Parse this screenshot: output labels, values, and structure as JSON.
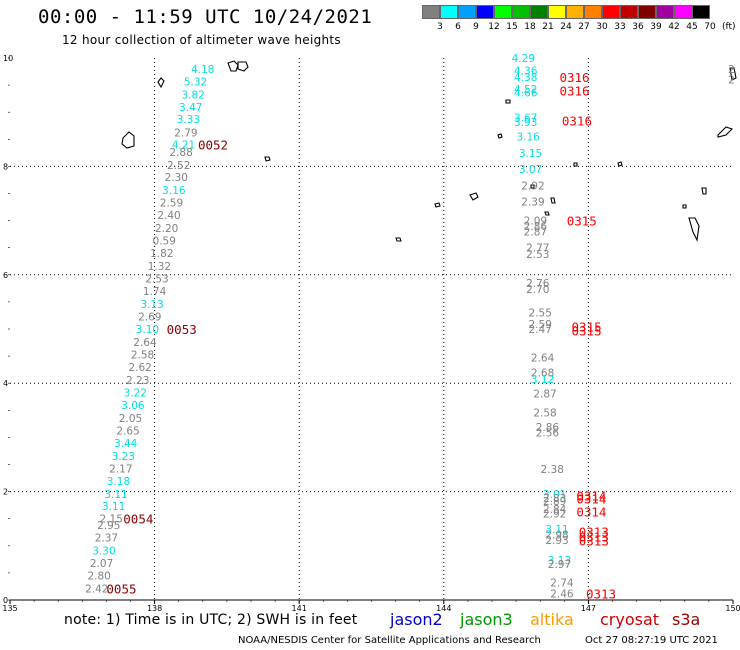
{
  "header": {
    "title": "00:00 - 11:59 UTC 10/24/2021",
    "subtitle": "12 hour collection of altimeter wave heights"
  },
  "colorbar": {
    "labels": [
      "3",
      "6",
      "9",
      "12",
      "15",
      "18",
      "21",
      "24",
      "27",
      "30",
      "33",
      "36",
      "39",
      "42",
      "45",
      "70"
    ],
    "unit": "(ft)",
    "colors": [
      "#808080",
      "#00ffff",
      "#00a0ff",
      "#0000ff",
      "#00ff00",
      "#00c000",
      "#008000",
      "#ffff00",
      "#ffb000",
      "#ff8000",
      "#ff0000",
      "#c00000",
      "#800000",
      "#a000a0",
      "#ff00ff",
      "#000000"
    ]
  },
  "axes": {
    "x_ticks": [
      "135",
      "138",
      "141",
      "144",
      "147",
      "150"
    ],
    "y_ticks": [
      "0",
      "2",
      "4",
      "6",
      "8",
      "10"
    ]
  },
  "chart_data": {
    "type": "scatter",
    "x_unit": "degrees longitude",
    "y_unit": "degrees latitude",
    "xlim": [
      135,
      150
    ],
    "ylim": [
      0,
      10
    ],
    "grid": true,
    "points": [
      {
        "lon": 139.0,
        "lat": 9.8,
        "t": "4.18",
        "c": "#00e0e0"
      },
      {
        "lon": 138.85,
        "lat": 9.57,
        "t": "5.32",
        "c": "#00e0e0"
      },
      {
        "lon": 138.8,
        "lat": 9.33,
        "t": "3.82",
        "c": "#00e0e0"
      },
      {
        "lon": 138.75,
        "lat": 9.1,
        "t": "3.47",
        "c": "#00e0e0"
      },
      {
        "lon": 138.7,
        "lat": 8.87,
        "t": "3.33",
        "c": "#00e0e0"
      },
      {
        "lon": 138.65,
        "lat": 8.63,
        "t": "2.79",
        "c": "#808080"
      },
      {
        "lon": 138.6,
        "lat": 8.4,
        "t": "4.21",
        "c": "#00e0e0"
      },
      {
        "lon": 138.55,
        "lat": 8.27,
        "t": "2.88",
        "c": "#808080"
      },
      {
        "lon": 138.5,
        "lat": 8.03,
        "t": "2.52",
        "c": "#808080"
      },
      {
        "lon": 138.45,
        "lat": 7.8,
        "t": "2.30",
        "c": "#808080"
      },
      {
        "lon": 138.4,
        "lat": 7.56,
        "t": "3.16",
        "c": "#00e0e0"
      },
      {
        "lon": 138.35,
        "lat": 7.33,
        "t": "2.59",
        "c": "#808080"
      },
      {
        "lon": 138.3,
        "lat": 7.1,
        "t": "2.40",
        "c": "#808080"
      },
      {
        "lon": 138.25,
        "lat": 6.86,
        "t": "2.20",
        "c": "#808080"
      },
      {
        "lon": 138.2,
        "lat": 6.63,
        "t": "0.59",
        "c": "#808080"
      },
      {
        "lon": 138.15,
        "lat": 6.4,
        "t": "1.82",
        "c": "#808080"
      },
      {
        "lon": 138.1,
        "lat": 6.16,
        "t": "1.32",
        "c": "#808080"
      },
      {
        "lon": 138.05,
        "lat": 5.93,
        "t": "2.53",
        "c": "#808080"
      },
      {
        "lon": 138.0,
        "lat": 5.7,
        "t": "1.74",
        "c": "#808080"
      },
      {
        "lon": 137.95,
        "lat": 5.46,
        "t": "3.13",
        "c": "#00e0e0"
      },
      {
        "lon": 137.9,
        "lat": 5.23,
        "t": "2.69",
        "c": "#808080"
      },
      {
        "lon": 137.85,
        "lat": 5.0,
        "t": "3.10",
        "c": "#00e0e0"
      },
      {
        "lon": 137.8,
        "lat": 4.76,
        "t": "2.64",
        "c": "#808080"
      },
      {
        "lon": 137.75,
        "lat": 4.53,
        "t": "2.58",
        "c": "#808080"
      },
      {
        "lon": 137.7,
        "lat": 4.3,
        "t": "2.62",
        "c": "#808080"
      },
      {
        "lon": 137.65,
        "lat": 4.06,
        "t": "2.23",
        "c": "#808080"
      },
      {
        "lon": 137.6,
        "lat": 3.83,
        "t": "3.22",
        "c": "#00e0e0"
      },
      {
        "lon": 137.55,
        "lat": 3.6,
        "t": "3.06",
        "c": "#00e0e0"
      },
      {
        "lon": 137.5,
        "lat": 3.36,
        "t": "2.05",
        "c": "#808080"
      },
      {
        "lon": 137.45,
        "lat": 3.13,
        "t": "2.65",
        "c": "#808080"
      },
      {
        "lon": 137.4,
        "lat": 2.9,
        "t": "3.44",
        "c": "#00e0e0"
      },
      {
        "lon": 137.35,
        "lat": 2.66,
        "t": "3.23",
        "c": "#00e0e0"
      },
      {
        "lon": 137.3,
        "lat": 2.43,
        "t": "2.17",
        "c": "#808080"
      },
      {
        "lon": 137.25,
        "lat": 2.2,
        "t": "3.18",
        "c": "#00e0e0"
      },
      {
        "lon": 137.2,
        "lat": 1.96,
        "t": "3.11",
        "c": "#00e0e0"
      },
      {
        "lon": 137.15,
        "lat": 1.73,
        "t": "3.11",
        "c": "#00e0e0"
      },
      {
        "lon": 137.1,
        "lat": 1.5,
        "t": "2.15",
        "c": "#808080"
      },
      {
        "lon": 137.05,
        "lat": 1.38,
        "t": "2.95",
        "c": "#808080"
      },
      {
        "lon": 137.0,
        "lat": 1.15,
        "t": "2.37",
        "c": "#808080"
      },
      {
        "lon": 136.95,
        "lat": 0.91,
        "t": "3.30",
        "c": "#00e0e0"
      },
      {
        "lon": 136.9,
        "lat": 0.68,
        "t": "2.07",
        "c": "#808080"
      },
      {
        "lon": 136.85,
        "lat": 0.45,
        "t": "2.80",
        "c": "#808080"
      },
      {
        "lon": 136.8,
        "lat": 0.21,
        "t": "2.42",
        "c": "#808080"
      },
      {
        "lon": 145.65,
        "lat": 10.0,
        "t": "4.29",
        "c": "#00e0e0"
      },
      {
        "lon": 145.7,
        "lat": 9.77,
        "t": "4.36",
        "c": "#00e0e0"
      },
      {
        "lon": 145.7,
        "lat": 9.65,
        "t": "4.38",
        "c": "#00e0e0"
      },
      {
        "lon": 145.7,
        "lat": 9.43,
        "t": "4.52",
        "c": "#00e0e0"
      },
      {
        "lon": 145.7,
        "lat": 9.36,
        "t": "4.66",
        "c": "#00e0e0"
      },
      {
        "lon": 145.7,
        "lat": 8.9,
        "t": "3.67",
        "c": "#00e0e0"
      },
      {
        "lon": 145.7,
        "lat": 8.82,
        "t": "3.93",
        "c": "#00e0e0"
      },
      {
        "lon": 145.75,
        "lat": 8.55,
        "t": "3.16",
        "c": "#00e0e0"
      },
      {
        "lon": 145.8,
        "lat": 8.25,
        "t": "3.15",
        "c": "#00e0e0"
      },
      {
        "lon": 145.8,
        "lat": 7.95,
        "t": "3.07",
        "c": "#00e0e0"
      },
      {
        "lon": 145.85,
        "lat": 7.65,
        "t": "2.92",
        "c": "#808080"
      },
      {
        "lon": 145.85,
        "lat": 7.35,
        "t": "2.39",
        "c": "#808080"
      },
      {
        "lon": 145.9,
        "lat": 7.0,
        "t": "2.09",
        "c": "#808080"
      },
      {
        "lon": 145.9,
        "lat": 6.9,
        "t": "2.86",
        "c": "#808080"
      },
      {
        "lon": 145.9,
        "lat": 6.8,
        "t": "2.87",
        "c": "#808080"
      },
      {
        "lon": 145.95,
        "lat": 6.5,
        "t": "2.77",
        "c": "#808080"
      },
      {
        "lon": 145.95,
        "lat": 6.38,
        "t": "2.53",
        "c": "#808080"
      },
      {
        "lon": 145.95,
        "lat": 5.85,
        "t": "2.76",
        "c": "#808080"
      },
      {
        "lon": 145.95,
        "lat": 5.74,
        "t": "2.70",
        "c": "#808080"
      },
      {
        "lon": 146.0,
        "lat": 5.3,
        "t": "2.55",
        "c": "#808080"
      },
      {
        "lon": 146.0,
        "lat": 5.09,
        "t": "2.59",
        "c": "#808080"
      },
      {
        "lon": 146.0,
        "lat": 5.0,
        "t": "2.47",
        "c": "#808080"
      },
      {
        "lon": 146.05,
        "lat": 4.47,
        "t": "2.64",
        "c": "#808080"
      },
      {
        "lon": 146.05,
        "lat": 4.2,
        "t": "2.68",
        "c": "#808080"
      },
      {
        "lon": 146.05,
        "lat": 4.08,
        "t": "3.12",
        "c": "#00e0e0"
      },
      {
        "lon": 146.1,
        "lat": 3.81,
        "t": "2.87",
        "c": "#808080"
      },
      {
        "lon": 146.1,
        "lat": 3.46,
        "t": "2.58",
        "c": "#808080"
      },
      {
        "lon": 146.15,
        "lat": 3.19,
        "t": "2.86",
        "c": "#808080"
      },
      {
        "lon": 146.15,
        "lat": 3.09,
        "t": "2.56",
        "c": "#808080"
      },
      {
        "lon": 146.25,
        "lat": 2.42,
        "t": "2.38",
        "c": "#808080"
      },
      {
        "lon": 146.3,
        "lat": 1.96,
        "t": "3.01",
        "c": "#00e0e0"
      },
      {
        "lon": 146.3,
        "lat": 1.88,
        "t": "2.83",
        "c": "#808080"
      },
      {
        "lon": 146.3,
        "lat": 1.83,
        "t": "2.89",
        "c": "#808080"
      },
      {
        "lon": 146.3,
        "lat": 1.68,
        "t": "2.84",
        "c": "#808080"
      },
      {
        "lon": 146.3,
        "lat": 1.6,
        "t": "2.92",
        "c": "#808080"
      },
      {
        "lon": 146.35,
        "lat": 1.31,
        "t": "3.11",
        "c": "#00e0e0"
      },
      {
        "lon": 146.35,
        "lat": 1.21,
        "t": "2.98",
        "c": "#808080"
      },
      {
        "lon": 146.35,
        "lat": 1.11,
        "t": "2.93",
        "c": "#808080"
      },
      {
        "lon": 146.4,
        "lat": 0.74,
        "t": "3.13",
        "c": "#00e0e0"
      },
      {
        "lon": 146.4,
        "lat": 0.66,
        "t": "2.97",
        "c": "#808080"
      },
      {
        "lon": 146.45,
        "lat": 0.32,
        "t": "2.74",
        "c": "#808080"
      },
      {
        "lon": 146.45,
        "lat": 0.12,
        "t": "2.46",
        "c": "#808080"
      }
    ],
    "time_labels": [
      {
        "lon": 138.9,
        "lat": 8.4,
        "t": "0052",
        "c": "#8b0000"
      },
      {
        "lon": 138.25,
        "lat": 5.0,
        "t": "0053",
        "c": "#8b0000"
      },
      {
        "lon": 137.35,
        "lat": 1.5,
        "t": "0054",
        "c": "#8b0000"
      },
      {
        "lon": 137.0,
        "lat": 0.21,
        "t": "0055",
        "c": "#8b0000"
      },
      {
        "lon": 146.4,
        "lat": 9.65,
        "t": "0316",
        "c": "#ff0000"
      },
      {
        "lon": 146.4,
        "lat": 9.4,
        "t": "0316",
        "c": "#ff0000"
      },
      {
        "lon": 146.45,
        "lat": 8.85,
        "t": "0316",
        "c": "#ff0000"
      },
      {
        "lon": 146.55,
        "lat": 7.0,
        "t": "0315",
        "c": "#ff0000"
      },
      {
        "lon": 146.65,
        "lat": 5.05,
        "t": "0315",
        "c": "#ff0000"
      },
      {
        "lon": 146.65,
        "lat": 4.97,
        "t": "0315",
        "c": "#ff0000"
      },
      {
        "lon": 146.75,
        "lat": 1.93,
        "t": "0314",
        "c": "#ff0000"
      },
      {
        "lon": 146.75,
        "lat": 1.87,
        "t": "0314",
        "c": "#ff0000"
      },
      {
        "lon": 146.75,
        "lat": 1.63,
        "t": "0314",
        "c": "#ff0000"
      },
      {
        "lon": 146.8,
        "lat": 1.26,
        "t": "0313",
        "c": "#ff0000"
      },
      {
        "lon": 146.8,
        "lat": 1.17,
        "t": "0313",
        "c": "#ff0000"
      },
      {
        "lon": 146.8,
        "lat": 1.1,
        "t": "0313",
        "c": "#ff0000"
      },
      {
        "lon": 146.95,
        "lat": 0.12,
        "t": "0313",
        "c": "#ff0000"
      }
    ],
    "edge_labels": [
      {
        "lon": 149.9,
        "lat": 9.8,
        "t": "2",
        "c": "#808080"
      },
      {
        "lon": 149.9,
        "lat": 9.6,
        "t": "2",
        "c": "#808080"
      }
    ]
  },
  "footer": {
    "note": "note: 1) Time is in UTC; 2) SWH is in feet",
    "satellites": [
      {
        "name": "jason2",
        "color": "#0000cc"
      },
      {
        "name": "jason3",
        "color": "#009900"
      },
      {
        "name": "altika",
        "color": "#ff9900"
      },
      {
        "name": "cryosat",
        "color": "#cc0000"
      },
      {
        "name": "s3a",
        "color": "#990000"
      }
    ],
    "credit": "NOAA/NESDIS Center for Satellite Applications and Research",
    "timestamp": "Oct 27 08:27:19 UTC 2021"
  }
}
